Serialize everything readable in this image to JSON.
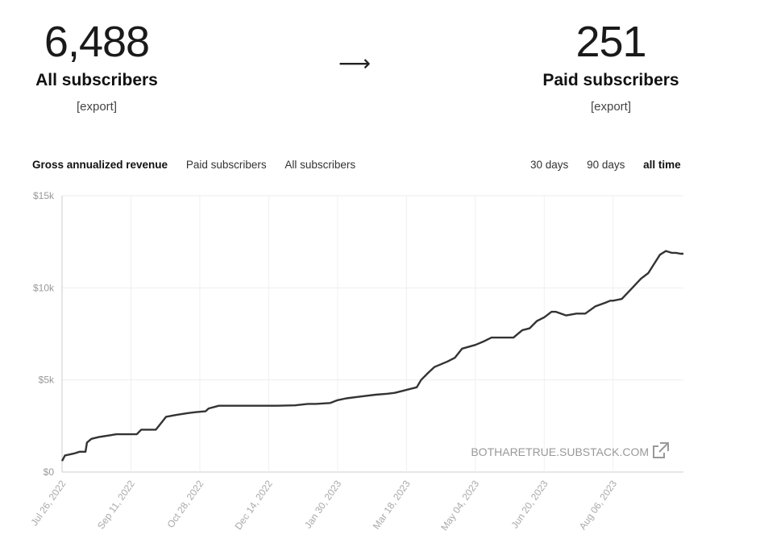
{
  "stats": {
    "left": {
      "value": "6,488",
      "label": "All subscribers",
      "export": "[export]"
    },
    "arrow": "⟶",
    "right": {
      "value": "251",
      "label": "Paid subscribers",
      "export": "[export]"
    }
  },
  "tabs": {
    "metrics": [
      "Gross annualized revenue",
      "Paid subscribers",
      "All subscribers"
    ],
    "active_metric": "Gross annualized revenue",
    "ranges": [
      "30 days",
      "90 days",
      "all time"
    ],
    "active_range": "all time"
  },
  "watermark": "BOTHARETRUE.SUBSTACK.COM",
  "chart_data": {
    "type": "line",
    "title": "",
    "xlabel": "",
    "ylabel": "",
    "ylim": [
      0,
      15000
    ],
    "y_ticks": [
      0,
      5000,
      10000,
      15000
    ],
    "y_tick_labels": [
      "$0",
      "$5k",
      "$10k",
      "$15k"
    ],
    "x_tick_labels": [
      "Jul 26, 2022",
      "Sep 11, 2022",
      "Oct 28, 2022",
      "Dec 14, 2022",
      "Jan 30, 2023",
      "Mar 18, 2023",
      "May 04, 2023",
      "Jun 20, 2023",
      "Aug 06, 2023"
    ],
    "xlim": [
      "2022-07-26",
      "2023-09-23"
    ],
    "grid": true,
    "series": [
      {
        "name": "",
        "color": "#333333",
        "x": [
          "2022-07-26",
          "2022-07-28",
          "2022-08-03",
          "2022-08-07",
          "2022-08-11",
          "2022-08-12",
          "2022-08-15",
          "2022-08-20",
          "2022-08-28",
          "2022-09-01",
          "2022-09-15",
          "2022-09-18",
          "2022-09-28",
          "2022-10-02",
          "2022-10-05",
          "2022-10-12",
          "2022-10-20",
          "2022-10-25",
          "2022-11-01",
          "2022-11-03",
          "2022-11-10",
          "2022-11-18",
          "2022-12-01",
          "2022-12-14",
          "2022-12-20",
          "2023-01-01",
          "2023-01-10",
          "2023-01-15",
          "2023-01-25",
          "2023-01-30",
          "2023-02-05",
          "2023-02-15",
          "2023-02-25",
          "2023-03-05",
          "2023-03-10",
          "2023-03-15",
          "2023-03-20",
          "2023-03-25",
          "2023-03-28",
          "2023-04-02",
          "2023-04-06",
          "2023-04-15",
          "2023-04-20",
          "2023-04-25",
          "2023-05-04",
          "2023-05-10",
          "2023-05-15",
          "2023-05-25",
          "2023-05-30",
          "2023-06-05",
          "2023-06-10",
          "2023-06-15",
          "2023-06-20",
          "2023-06-25",
          "2023-06-28",
          "2023-07-05",
          "2023-07-12",
          "2023-07-18",
          "2023-07-25",
          "2023-08-01",
          "2023-08-04",
          "2023-08-06",
          "2023-08-12",
          "2023-08-18",
          "2023-08-25",
          "2023-08-30",
          "2023-09-03",
          "2023-09-07",
          "2023-09-11",
          "2023-09-15",
          "2023-09-18",
          "2023-09-21",
          "2023-09-23"
        ],
        "y": [
          600,
          900,
          1000,
          1100,
          1100,
          1600,
          1800,
          1900,
          2000,
          2050,
          2050,
          2300,
          2300,
          2700,
          3000,
          3100,
          3200,
          3250,
          3300,
          3450,
          3600,
          3600,
          3600,
          3600,
          3600,
          3620,
          3700,
          3700,
          3750,
          3900,
          4000,
          4100,
          4200,
          4250,
          4300,
          4400,
          4500,
          4600,
          5000,
          5400,
          5700,
          6000,
          6200,
          6700,
          6900,
          7100,
          7300,
          7300,
          7300,
          7700,
          7800,
          8200,
          8400,
          8700,
          8700,
          8500,
          8600,
          8600,
          9000,
          9200,
          9300,
          9300,
          9400,
          9900,
          10500,
          10800,
          11300,
          11800,
          12000,
          11900,
          11900,
          11850,
          11850
        ]
      }
    ]
  }
}
